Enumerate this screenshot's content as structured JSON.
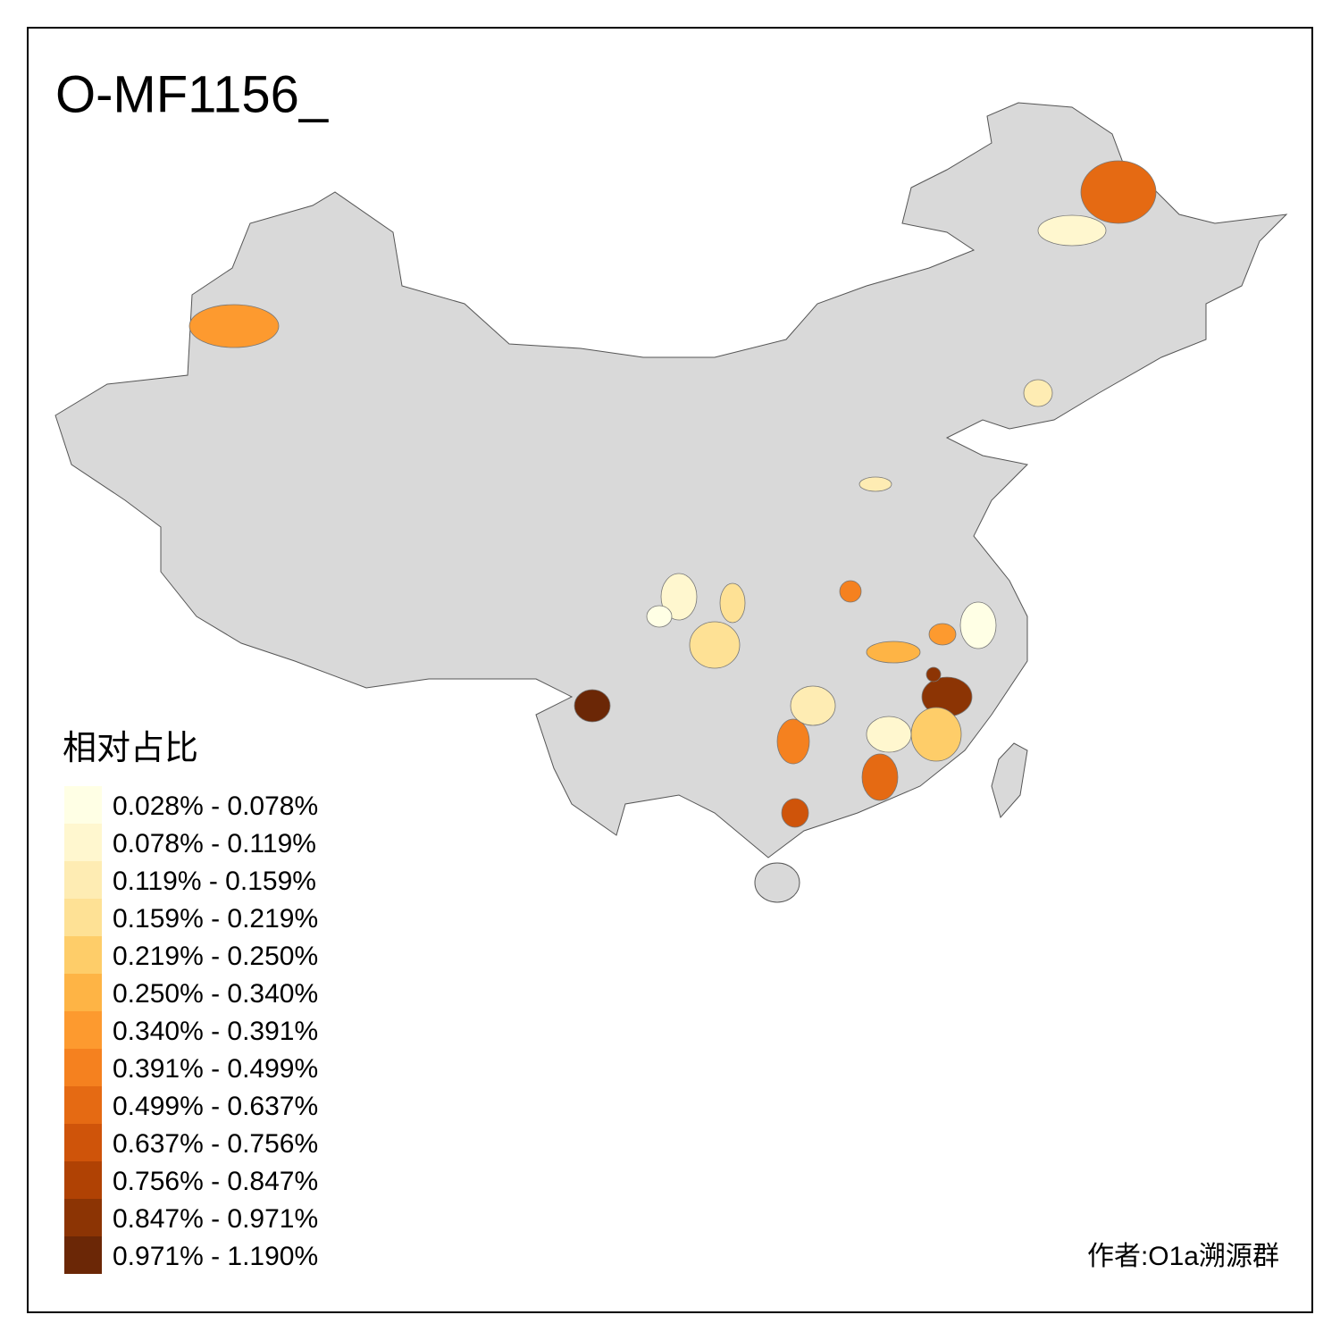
{
  "title": "O-MF1156_",
  "legend": {
    "title": "相对占比",
    "items": [
      {
        "label": "0.028% - 0.078%",
        "color": "#ffffe5"
      },
      {
        "label": "0.078% - 0.119%",
        "color": "#fff7cf"
      },
      {
        "label": "0.119% - 0.159%",
        "color": "#feecb3"
      },
      {
        "label": "0.159% - 0.219%",
        "color": "#fee195"
      },
      {
        "label": "0.219% - 0.250%",
        "color": "#fecd69"
      },
      {
        "label": "0.250% - 0.340%",
        "color": "#feb445"
      },
      {
        "label": "0.340% - 0.391%",
        "color": "#fd9a2f"
      },
      {
        "label": "0.391% - 0.499%",
        "color": "#f5811f"
      },
      {
        "label": "0.499% - 0.637%",
        "color": "#e56a13"
      },
      {
        "label": "0.637% - 0.756%",
        "color": "#cf540a"
      },
      {
        "label": "0.756% - 0.847%",
        "color": "#b04204"
      },
      {
        "label": "0.847% - 0.971%",
        "color": "#8c3404"
      },
      {
        "label": "0.971% - 1.190%",
        "color": "#6b2706"
      }
    ]
  },
  "credit": "作者:O1a溯源群"
}
